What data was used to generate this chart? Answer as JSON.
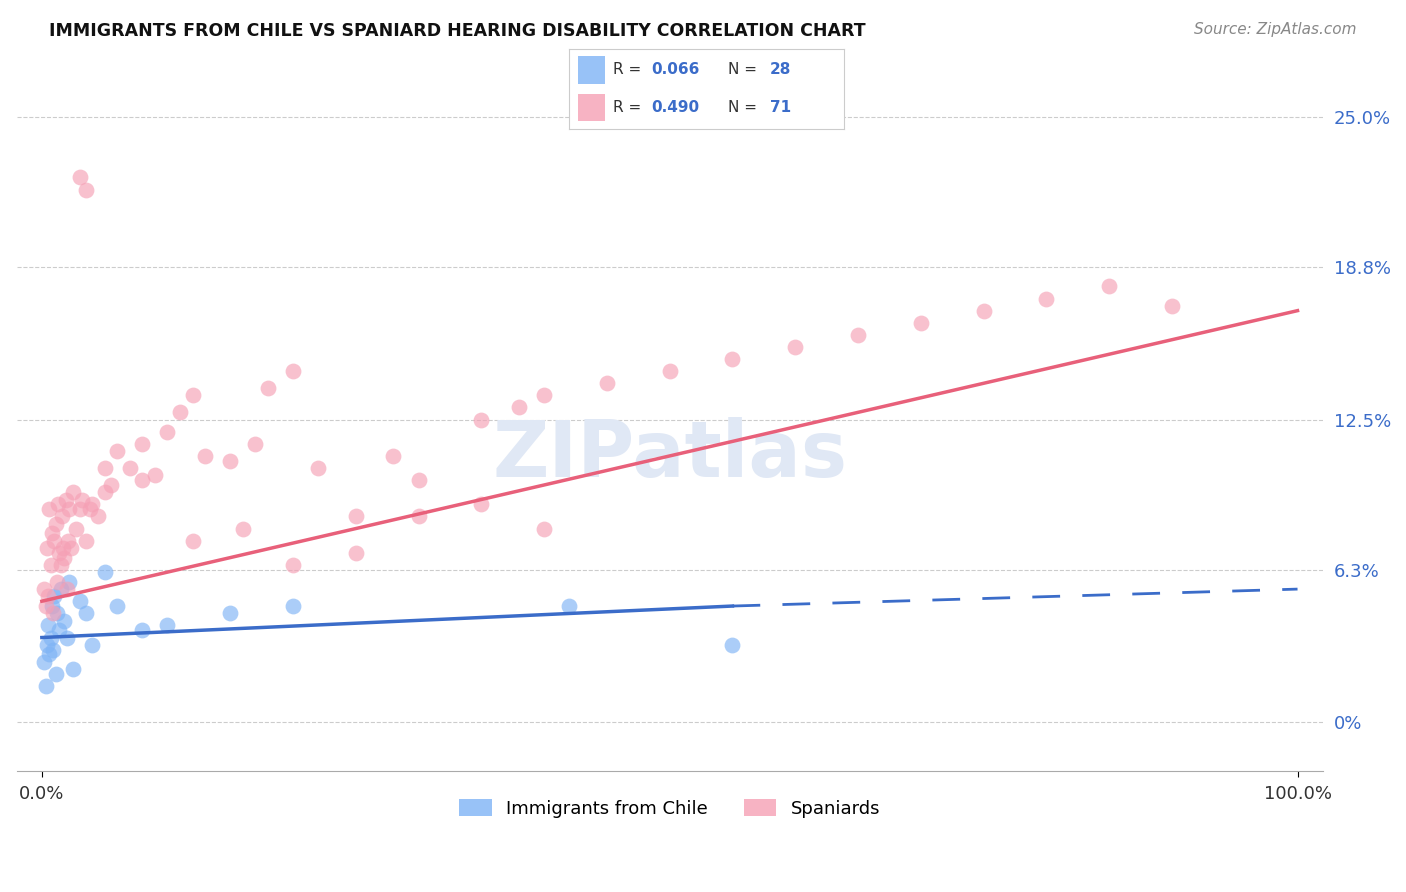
{
  "title": "IMMIGRANTS FROM CHILE VS SPANIARD HEARING DISABILITY CORRELATION CHART",
  "source": "Source: ZipAtlas.com",
  "ylabel_values": [
    0.0,
    6.3,
    12.5,
    18.8,
    25.0
  ],
  "ylabel_labels": [
    "0%",
    "6.3%",
    "12.5%",
    "18.8%",
    "25.0%"
  ],
  "xlim": [
    -2,
    102
  ],
  "ylim": [
    -2.0,
    27.0
  ],
  "legend_label1": "Immigrants from Chile",
  "legend_label2": "Spaniards",
  "color_blue": "#7EB3F5",
  "color_pink": "#F5A0B5",
  "color_blue_line": "#3B6CC9",
  "color_pink_line": "#E8607A",
  "color_axis_label": "#3B6CC9",
  "background_color": "#FFFFFF",
  "grid_color": "#CCCCCC",
  "watermark": "ZIPatlas",
  "chile_trend_x0": 0,
  "chile_trend_y0": 3.5,
  "chile_trend_x1": 55,
  "chile_trend_y1": 4.8,
  "chile_dash_x0": 55,
  "chile_dash_y0": 4.8,
  "chile_dash_x1": 100,
  "chile_dash_y1": 5.5,
  "spain_trend_x0": 0,
  "spain_trend_y0": 5.0,
  "spain_trend_x1": 100,
  "spain_trend_y1": 17.0
}
